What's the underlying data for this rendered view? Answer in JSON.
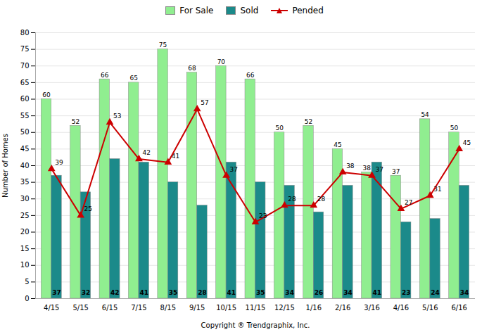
{
  "chart_data": {
    "type": "bar",
    "categories": [
      "4/15",
      "5/15",
      "6/15",
      "7/15",
      "8/15",
      "9/15",
      "10/15",
      "11/15",
      "12/15",
      "1/16",
      "2/16",
      "3/16",
      "4/16",
      "5/16",
      "6/16"
    ],
    "series": [
      {
        "name": "For Sale",
        "type": "bar",
        "color": "#90EE90",
        "values": [
          60,
          52,
          66,
          65,
          75,
          68,
          70,
          66,
          50,
          52,
          45,
          38,
          37,
          54,
          50
        ]
      },
      {
        "name": "Sold",
        "type": "bar",
        "color": "#1B8A8A",
        "values": [
          37,
          32,
          42,
          41,
          35,
          28,
          41,
          35,
          34,
          26,
          34,
          41,
          23,
          24,
          34
        ]
      },
      {
        "name": "Pended",
        "type": "line",
        "color": "#CC0000",
        "marker": "triangle",
        "values": [
          39,
          25,
          53,
          42,
          41,
          57,
          37,
          23,
          28,
          28,
          38,
          37,
          27,
          31,
          45
        ]
      }
    ],
    "xlabel": "Copyright ® Trendgraphix, Inc.",
    "ylabel": "Number of Homes",
    "ylim": [
      0,
      80
    ],
    "yticks": [
      0,
      5,
      10,
      15,
      20,
      25,
      30,
      35,
      40,
      45,
      50,
      55,
      60,
      65,
      70,
      75,
      80
    ],
    "grid": true,
    "legend": "top",
    "data_labels": true
  }
}
